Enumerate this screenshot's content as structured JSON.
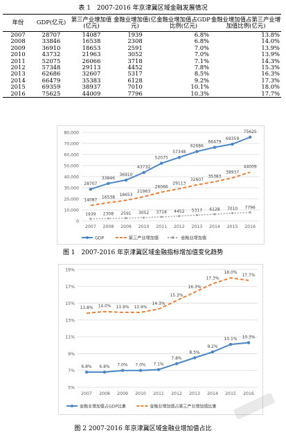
{
  "table1": {
    "caption": "表 1　2007-2016 年京津冀区域金融发展情况",
    "headers": [
      "年份",
      "GDP(亿元)",
      "第三产业增加值(亿元)",
      "金融业增加值(亿元)",
      "金融业增加值占GDP 比例(亿元)",
      "金融业增加值占第三产业增加值比例(亿元)"
    ],
    "rows": [
      [
        "2007",
        "28707",
        "14087",
        "1939",
        "6.8%",
        "13.8%"
      ],
      [
        "2008",
        "33846",
        "16538",
        "2308",
        "6.8%",
        "14.0%"
      ],
      [
        "2009",
        "36910",
        "18653",
        "2591",
        "7.0%",
        "13.9%"
      ],
      [
        "2010",
        "43732",
        "21963",
        "3052",
        "7.0%",
        "13.9%"
      ],
      [
        "2011",
        "52075",
        "26066",
        "3718",
        "7.1%",
        "14.3%"
      ],
      [
        "2012",
        "57348",
        "29113",
        "4452",
        "7.8%",
        "15.3%"
      ],
      [
        "2013",
        "62686",
        "32607",
        "5317",
        "8.5%",
        "16.3%"
      ],
      [
        "2014",
        "66479",
        "35383",
        "6128",
        "9.2%",
        "17.3%"
      ],
      [
        "2015",
        "69359",
        "38937",
        "7010",
        "10.1%",
        "18.0%"
      ],
      [
        "2016",
        "75625",
        "44009",
        "7796",
        "10.3%",
        "17.7%"
      ]
    ]
  },
  "figure1": {
    "caption": "图 1　2007-2016 年京津冀区域金融指标增加值变化趋势"
  },
  "figure2": {
    "caption": "图 2 2007-2016 年京津冀区域金融业增加值占比"
  },
  "chart_data": [
    {
      "type": "line",
      "title": "",
      "xlabel": "",
      "ylabel": "",
      "categories": [
        "2007",
        "2008",
        "2009",
        "2010",
        "2011",
        "2012",
        "2013",
        "2014",
        "2015",
        "2016"
      ],
      "ylim": [
        0,
        80000
      ],
      "yticks": [
        "0",
        "10,000",
        "20,000",
        "30,000",
        "40,000",
        "50,000",
        "60,000",
        "70,000",
        "80,000"
      ],
      "grid": true,
      "legend_position": "bottom",
      "series": [
        {
          "name": "GDP",
          "color": "#4a86c5",
          "style": "solid-marker",
          "values": [
            28707,
            33846,
            36910,
            43732,
            52075,
            57348,
            62686,
            66479,
            69359,
            75625
          ],
          "labels": [
            "28707",
            "33846",
            "36910",
            "43732",
            "52075",
            "57348",
            "62686",
            "66479",
            "69359",
            "75625"
          ]
        },
        {
          "name": "第三产业增加值",
          "color": "#ed7d31",
          "style": "dashed",
          "values": [
            14087,
            16538,
            18653,
            21963,
            26066,
            29113,
            32607,
            35383,
            38937,
            44009
          ],
          "labels": [
            "14087",
            "16538",
            "18653",
            "21963",
            "26066",
            "29113",
            "32607",
            "35383",
            "38937",
            "44009"
          ]
        },
        {
          "name": "金融业增加值",
          "color": "#a5a5a5",
          "style": "dotted",
          "values": [
            1939,
            2308,
            2591,
            3052,
            3718,
            4452,
            5317,
            6128,
            7010,
            7796
          ],
          "labels": [
            "1939",
            "2308",
            "2591",
            "3052",
            "3718",
            "4452",
            "5317",
            "6128",
            "7010",
            "7796"
          ]
        }
      ]
    },
    {
      "type": "line",
      "title": "",
      "xlabel": "",
      "ylabel": "",
      "categories": [
        "2007",
        "2008",
        "2009",
        "2010",
        "2011",
        "2012",
        "2013",
        "2014",
        "2015",
        "2016"
      ],
      "ylim": [
        5,
        19
      ],
      "yticks": [
        "5%",
        "7%",
        "9%",
        "11%",
        "13%",
        "15%",
        "17%",
        "19%"
      ],
      "grid": true,
      "legend_position": "bottom",
      "series": [
        {
          "name": "金融业增加值占GDP比重",
          "color": "#4a86c5",
          "style": "solid-marker",
          "values": [
            6.8,
            6.8,
            7.0,
            7.0,
            7.1,
            7.8,
            8.5,
            9.2,
            10.1,
            10.3
          ],
          "labels": [
            "6.8%",
            "6.8%",
            "7.0%",
            "7.0%",
            "7.1%",
            "7.8%",
            "8.5%",
            "9.2%",
            "10.1%",
            "10.3%"
          ]
        },
        {
          "name": "金融业增加值占第三产业增加值比重",
          "color": "#ed7d31",
          "style": "dashed",
          "values": [
            13.8,
            14.0,
            13.9,
            13.9,
            14.3,
            15.3,
            16.3,
            17.3,
            18.0,
            17.7
          ],
          "labels": [
            "13.8%",
            "14.0%",
            "13.9%",
            "13.9%",
            "14.3%",
            "15.3%",
            "16.3%",
            "17.3%",
            "18.0%",
            "17.7%"
          ]
        }
      ]
    }
  ]
}
